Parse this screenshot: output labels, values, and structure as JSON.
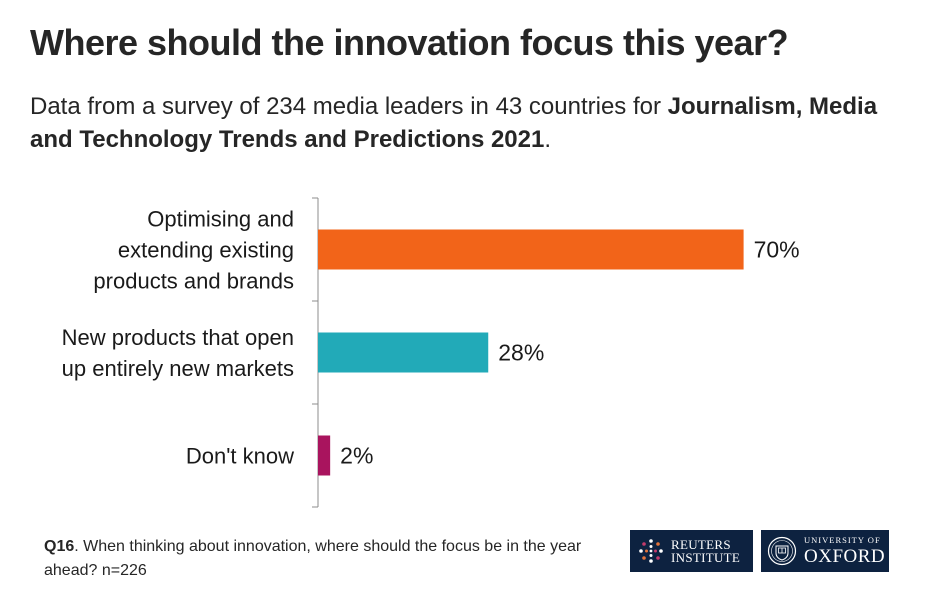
{
  "title": "Where should the innovation focus this year?",
  "subtitle": {
    "prefix": "Data from a survey of 234 media leaders in 43 countries for ",
    "bold": "Journalism, Media and Technology Trends and Predictions 2021",
    "suffix": "."
  },
  "chart_data": {
    "type": "bar",
    "orientation": "horizontal",
    "categories": [
      [
        "Optimising and",
        "extending existing",
        "products and brands"
      ],
      [
        "New products that open",
        "up entirely new markets"
      ],
      [
        "Don't know"
      ]
    ],
    "values": [
      70,
      28,
      2
    ],
    "data_labels": [
      "70%",
      "28%",
      "2%"
    ],
    "colors": [
      "#f26419",
      "#22aab8",
      "#a9145e"
    ],
    "xlim": [
      0,
      100
    ],
    "grid": false,
    "legend": "none"
  },
  "footnote": {
    "bold": "Q16",
    "text": ". When thinking about innovation, where should the focus be in the year ahead?  n=226"
  },
  "logos": {
    "reuters": {
      "line1": "REUTERS",
      "line2": "INSTITUTE",
      "icon": "reuters-dots-icon"
    },
    "oxford": {
      "line1": "UNIVERSITY OF",
      "line2": "OXFORD",
      "icon": "oxford-crest-icon"
    }
  },
  "colors": {
    "logo_background": "#0d2240"
  }
}
